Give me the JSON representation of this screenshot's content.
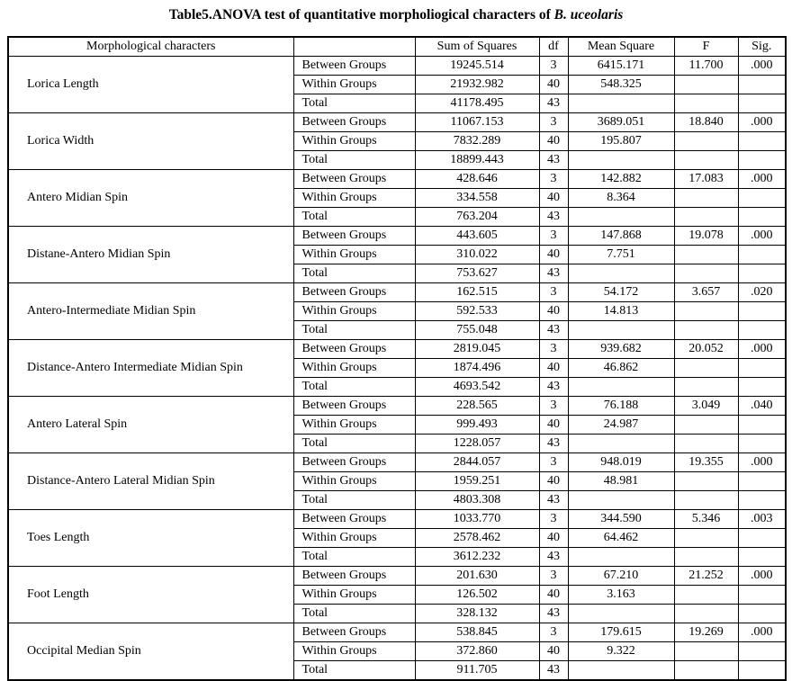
{
  "title": {
    "text": "Table5.ANOVA test of quantitative morpholiogical characters of ",
    "species": "B. uceolaris"
  },
  "table": {
    "headers": [
      "Morphological characters",
      "",
      "Sum of Squares",
      "df",
      "Mean Square",
      "F",
      "Sig."
    ],
    "groups": [
      {
        "character": "Lorica Length",
        "rows": [
          {
            "label": "Between Groups",
            "sum_of_squares": "19245.514",
            "df": "3",
            "mean_square": "6415.171",
            "f": "11.700",
            "sig": ".000"
          },
          {
            "label": "Within Groups",
            "sum_of_squares": "21932.982",
            "df": "40",
            "mean_square": "548.325",
            "f": "",
            "sig": ""
          },
          {
            "label": "Total",
            "sum_of_squares": "41178.495",
            "df": "43",
            "mean_square": "",
            "f": "",
            "sig": ""
          }
        ]
      },
      {
        "character": "Lorica Width",
        "rows": [
          {
            "label": "Between Groups",
            "sum_of_squares": "11067.153",
            "df": "3",
            "mean_square": "3689.051",
            "f": "18.840",
            "sig": ".000"
          },
          {
            "label": "Within Groups",
            "sum_of_squares": "7832.289",
            "df": "40",
            "mean_square": "195.807",
            "f": "",
            "sig": ""
          },
          {
            "label": "Total",
            "sum_of_squares": "18899.443",
            "df": "43",
            "mean_square": "",
            "f": "",
            "sig": ""
          }
        ]
      },
      {
        "character": "Antero Midian Spin",
        "rows": [
          {
            "label": "Between Groups",
            "sum_of_squares": "428.646",
            "df": "3",
            "mean_square": "142.882",
            "f": "17.083",
            "sig": ".000"
          },
          {
            "label": "Within Groups",
            "sum_of_squares": "334.558",
            "df": "40",
            "mean_square": "8.364",
            "f": "",
            "sig": ""
          },
          {
            "label": "Total",
            "sum_of_squares": "763.204",
            "df": "43",
            "mean_square": "",
            "f": "",
            "sig": ""
          }
        ]
      },
      {
        "character": "Distane-Antero Midian Spin",
        "rows": [
          {
            "label": "Between Groups",
            "sum_of_squares": "443.605",
            "df": "3",
            "mean_square": "147.868",
            "f": "19.078",
            "sig": ".000"
          },
          {
            "label": "Within Groups",
            "sum_of_squares": "310.022",
            "df": "40",
            "mean_square": "7.751",
            "f": "",
            "sig": ""
          },
          {
            "label": "Total",
            "sum_of_squares": "753.627",
            "df": "43",
            "mean_square": "",
            "f": "",
            "sig": ""
          }
        ]
      },
      {
        "character": "Antero-Intermediate Midian Spin",
        "rows": [
          {
            "label": "Between Groups",
            "sum_of_squares": "162.515",
            "df": "3",
            "mean_square": "54.172",
            "f": "3.657",
            "sig": ".020"
          },
          {
            "label": "Within Groups",
            "sum_of_squares": "592.533",
            "df": "40",
            "mean_square": "14.813",
            "f": "",
            "sig": ""
          },
          {
            "label": "Total",
            "sum_of_squares": "755.048",
            "df": "43",
            "mean_square": "",
            "f": "",
            "sig": ""
          }
        ]
      },
      {
        "character": "Distance-Antero Intermediate Midian Spin",
        "rows": [
          {
            "label": "Between Groups",
            "sum_of_squares": "2819.045",
            "df": "3",
            "mean_square": "939.682",
            "f": "20.052",
            "sig": ".000"
          },
          {
            "label": "Within Groups",
            "sum_of_squares": "1874.496",
            "df": "40",
            "mean_square": "46.862",
            "f": "",
            "sig": ""
          },
          {
            "label": "Total",
            "sum_of_squares": "4693.542",
            "df": "43",
            "mean_square": "",
            "f": "",
            "sig": ""
          }
        ]
      },
      {
        "character": "Antero Lateral Spin",
        "rows": [
          {
            "label": "Between Groups",
            "sum_of_squares": "228.565",
            "df": "3",
            "mean_square": "76.188",
            "f": "3.049",
            "sig": ".040"
          },
          {
            "label": "Within Groups",
            "sum_of_squares": "999.493",
            "df": "40",
            "mean_square": "24.987",
            "f": "",
            "sig": ""
          },
          {
            "label": "Total",
            "sum_of_squares": "1228.057",
            "df": "43",
            "mean_square": "",
            "f": "",
            "sig": ""
          }
        ]
      },
      {
        "character": "Distance-Antero Lateral Midian Spin",
        "rows": [
          {
            "label": "Between Groups",
            "sum_of_squares": "2844.057",
            "df": "3",
            "mean_square": "948.019",
            "f": "19.355",
            "sig": ".000"
          },
          {
            "label": "Within Groups",
            "sum_of_squares": "1959.251",
            "df": "40",
            "mean_square": "48.981",
            "f": "",
            "sig": ""
          },
          {
            "label": "Total",
            "sum_of_squares": "4803.308",
            "df": "43",
            "mean_square": "",
            "f": "",
            "sig": ""
          }
        ]
      },
      {
        "character": "Toes Length",
        "rows": [
          {
            "label": "Between Groups",
            "sum_of_squares": "1033.770",
            "df": "3",
            "mean_square": "344.590",
            "f": "5.346",
            "sig": ".003"
          },
          {
            "label": "Within Groups",
            "sum_of_squares": "2578.462",
            "df": "40",
            "mean_square": "64.462",
            "f": "",
            "sig": ""
          },
          {
            "label": "Total",
            "sum_of_squares": "3612.232",
            "df": "43",
            "mean_square": "",
            "f": "",
            "sig": ""
          }
        ]
      },
      {
        "character": "Foot Length",
        "rows": [
          {
            "label": "Between Groups",
            "sum_of_squares": "201.630",
            "df": "3",
            "mean_square": "67.210",
            "f": "21.252",
            "sig": ".000"
          },
          {
            "label": "Within Groups",
            "sum_of_squares": "126.502",
            "df": "40",
            "mean_square": "3.163",
            "f": "",
            "sig": ""
          },
          {
            "label": "Total",
            "sum_of_squares": "328.132",
            "df": "43",
            "mean_square": "",
            "f": "",
            "sig": ""
          }
        ]
      },
      {
        "character": "Occipital Median Spin",
        "rows": [
          {
            "label": "Between Groups",
            "sum_of_squares": "538.845",
            "df": "3",
            "mean_square": "179.615",
            "f": "19.269",
            "sig": ".000"
          },
          {
            "label": "Within Groups",
            "sum_of_squares": "372.860",
            "df": "40",
            "mean_square": "9.322",
            "f": "",
            "sig": ""
          },
          {
            "label": "Total",
            "sum_of_squares": "911.705",
            "df": "43",
            "mean_square": "",
            "f": "",
            "sig": ""
          }
        ]
      }
    ]
  }
}
